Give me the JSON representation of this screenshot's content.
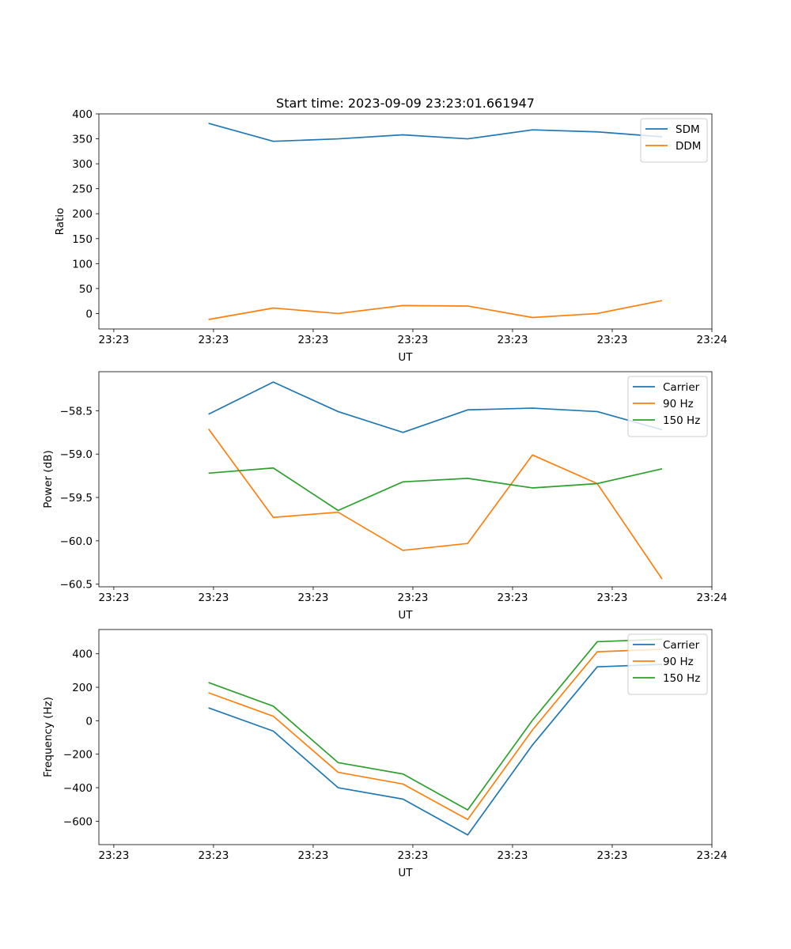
{
  "figure_title": "Start time: 2023-09-09 23:23:01.661947",
  "colors": {
    "blue": "#1f77b4",
    "orange": "#ff7f0e",
    "green": "#2ca02c"
  },
  "chart_data": [
    {
      "type": "line",
      "title": "Start time: 2023-09-09 23:23:01.661947",
      "xlabel": "UT",
      "ylabel": "Ratio",
      "x": [
        1.5,
        2.15,
        2.8,
        3.45,
        4.1,
        4.75,
        5.4,
        6.05
      ],
      "xlim": [
        0.4,
        6.55
      ],
      "xticks": [
        0.55,
        1.55,
        2.55,
        3.55,
        4.55,
        5.55,
        6.55
      ],
      "xtick_labels": [
        "23:23",
        "23:23",
        "23:23",
        "23:23",
        "23:23",
        "23:23",
        "23:24"
      ],
      "ylim": [
        -31,
        400
      ],
      "yticks": [
        0,
        50,
        100,
        150,
        200,
        250,
        300,
        350,
        400
      ],
      "ytick_labels": [
        "0",
        "50",
        "100",
        "150",
        "200",
        "250",
        "300",
        "350",
        "400"
      ],
      "legend": "top-right",
      "series": [
        {
          "name": "SDM",
          "color": "#1f77b4",
          "values": [
            381,
            345,
            350,
            358,
            350,
            368,
            364,
            354
          ]
        },
        {
          "name": "DDM",
          "color": "#ff7f0e",
          "values": [
            -12,
            11,
            0,
            16,
            15,
            -8,
            0,
            26
          ]
        }
      ]
    },
    {
      "type": "line",
      "title": "",
      "xlabel": "UT",
      "ylabel": "Power (dB)",
      "x": [
        1.5,
        2.15,
        2.8,
        3.45,
        4.1,
        4.75,
        5.4,
        6.05
      ],
      "xlim": [
        0.4,
        6.55
      ],
      "xticks": [
        0.55,
        1.55,
        2.55,
        3.55,
        4.55,
        5.55,
        6.55
      ],
      "xtick_labels": [
        "23:23",
        "23:23",
        "23:23",
        "23:23",
        "23:23",
        "23:23",
        "23:24"
      ],
      "ylim": [
        -60.53,
        -58.05
      ],
      "yticks": [
        -58.5,
        -59.0,
        -59.5,
        -60.0,
        -60.5
      ],
      "ytick_labels": [
        "−58.5",
        "−59.0",
        "−59.5",
        "−60.0",
        "−60.5"
      ],
      "legend": "top-right",
      "series": [
        {
          "name": "Carrier",
          "color": "#1f77b4",
          "values": [
            -58.54,
            -58.17,
            -58.51,
            -58.75,
            -58.49,
            -58.47,
            -58.51,
            -58.72
          ]
        },
        {
          "name": "90 Hz",
          "color": "#ff7f0e",
          "values": [
            -58.71,
            -59.73,
            -59.67,
            -60.11,
            -60.03,
            -59.01,
            -59.34,
            -60.44
          ]
        },
        {
          "name": "150 Hz",
          "color": "#2ca02c",
          "values": [
            -59.22,
            -59.16,
            -59.65,
            -59.32,
            -59.28,
            -59.39,
            -59.34,
            -59.17
          ]
        }
      ]
    },
    {
      "type": "line",
      "title": "",
      "xlabel": "UT",
      "ylabel": "Frequency (Hz)",
      "x": [
        1.5,
        2.15,
        2.8,
        3.45,
        4.1,
        4.75,
        5.4,
        6.05
      ],
      "xlim": [
        0.4,
        6.55
      ],
      "xticks": [
        0.55,
        1.55,
        2.55,
        3.55,
        4.55,
        5.55,
        6.55
      ],
      "xtick_labels": [
        "23:23",
        "23:23",
        "23:23",
        "23:23",
        "23:23",
        "23:23",
        "23:24"
      ],
      "ylim": [
        -740,
        545
      ],
      "yticks": [
        400,
        200,
        0,
        -200,
        -400,
        -600
      ],
      "ytick_labels": [
        "400",
        "200",
        "0",
        "−200",
        "−400",
        "−600"
      ],
      "legend": "top-right",
      "series": [
        {
          "name": "Carrier",
          "color": "#1f77b4",
          "values": [
            77,
            -62,
            -400,
            -468,
            -682,
            -145,
            322,
            337
          ]
        },
        {
          "name": "90 Hz",
          "color": "#ff7f0e",
          "values": [
            167,
            27,
            -308,
            -378,
            -590,
            -55,
            412,
            427
          ]
        },
        {
          "name": "150 Hz",
          "color": "#2ca02c",
          "values": [
            228,
            87,
            -250,
            -318,
            -533,
            3,
            472,
            487
          ]
        }
      ]
    }
  ]
}
